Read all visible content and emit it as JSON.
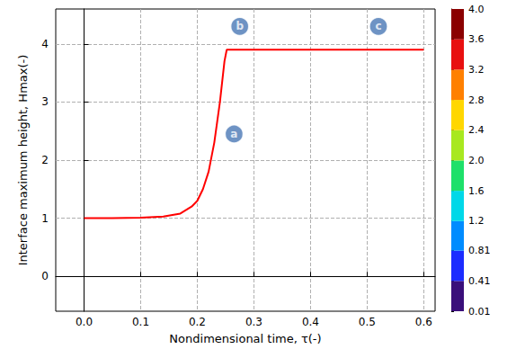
{
  "chart_data": {
    "type": "line",
    "xlabel": "Nondimensional time, τ(-)",
    "ylabel": "Interface maximum height, Hmax(-)",
    "x": [
      0,
      0.05,
      0.1,
      0.14,
      0.17,
      0.19,
      0.2,
      0.21,
      0.22,
      0.23,
      0.24,
      0.248,
      0.252,
      0.3,
      0.4,
      0.5,
      0.6
    ],
    "values": [
      1.0,
      1.0,
      1.01,
      1.03,
      1.08,
      1.2,
      1.3,
      1.5,
      1.8,
      2.3,
      3.0,
      3.7,
      3.9,
      3.9,
      3.9,
      3.9,
      3.9
    ],
    "color": "#ff0000",
    "xlim": [
      -0.05,
      0.62
    ],
    "xticks": [
      {
        "value": 0,
        "label": "0.0"
      },
      0.1,
      0.2,
      0.3,
      0.4,
      0.5,
      0.6
    ],
    "ylim": [
      -0.6,
      4.6
    ],
    "yticks": [
      0,
      1,
      2,
      3,
      4
    ],
    "grid": true,
    "annotations": [
      {
        "text": "a",
        "x": 0.265,
        "y": 2.45
      },
      {
        "text": "b",
        "x": 0.275,
        "y": 4.3
      },
      {
        "text": "c",
        "x": 0.52,
        "y": 4.3
      }
    ],
    "colorbar": {
      "range": [
        0.01,
        4.0
      ],
      "ticks": [
        0.01,
        0.41,
        0.81,
        1.2,
        1.6,
        {
          "value": 2.0,
          "label": "2.0"
        },
        2.4,
        2.8,
        3.2,
        3.6,
        {
          "value": 4.0,
          "label": "4.0"
        }
      ],
      "colors": [
        "#3a0f7a",
        "#1c2cff",
        "#008cff",
        "#00d8e8",
        "#1ee06a",
        "#a8e820",
        "#ffd700",
        "#ff8000",
        "#e81010",
        "#8b0000"
      ]
    }
  }
}
